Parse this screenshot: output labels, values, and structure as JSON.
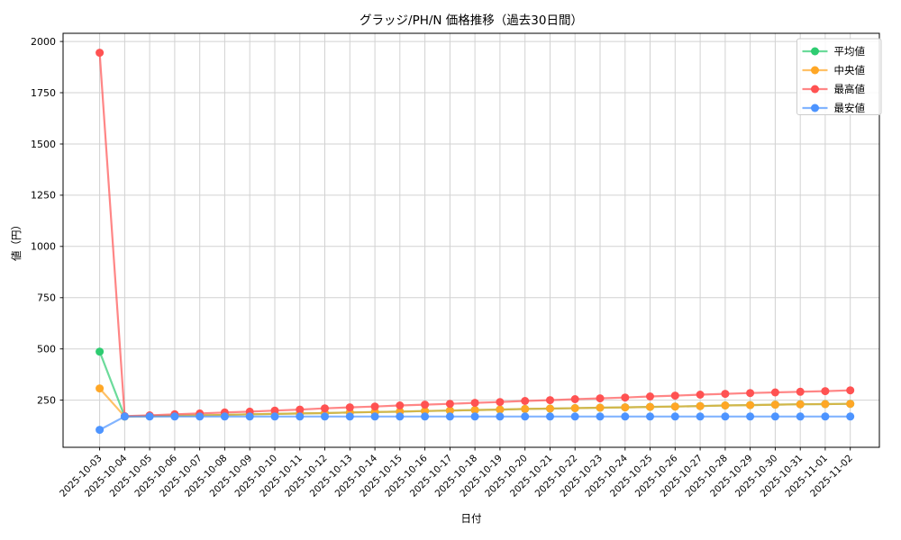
{
  "title": "グラッジ/PH/N 価格推移（過去30日間）",
  "chart_data": {
    "type": "line",
    "title": "グラッジ/PH/N 価格推移（過去30日間）",
    "xlabel": "日付",
    "ylabel": "値（円）",
    "grid": true,
    "legend_position": "upper right",
    "ylim": [
      20,
      2040
    ],
    "yticks": [
      250,
      500,
      750,
      1000,
      1250,
      1500,
      1750,
      2000
    ],
    "x": [
      "2025-10-03",
      "2025-10-04",
      "2025-10-05",
      "2025-10-06",
      "2025-10-07",
      "2025-10-08",
      "2025-10-09",
      "2025-10-10",
      "2025-10-11",
      "2025-10-12",
      "2025-10-13",
      "2025-10-14",
      "2025-10-15",
      "2025-10-16",
      "2025-10-17",
      "2025-10-18",
      "2025-10-19",
      "2025-10-20",
      "2025-10-21",
      "2025-10-22",
      "2025-10-23",
      "2025-10-24",
      "2025-10-25",
      "2025-10-26",
      "2025-10-27",
      "2025-10-28",
      "2025-10-29",
      "2025-10-30",
      "2025-10-31",
      "2025-11-01",
      "2025-11-02"
    ],
    "series": [
      {
        "id": "mean",
        "name": "平均値",
        "color": "#2ecc71",
        "values": [
          487,
          170,
          172,
          174,
          176,
          178,
          181,
          183,
          185,
          187,
          190,
          192,
          194,
          197,
          199,
          202,
          204,
          207,
          209,
          211,
          213,
          215,
          217,
          219,
          221,
          224,
          226,
          228,
          230,
          231,
          232
        ]
      },
      {
        "id": "median",
        "name": "中央値",
        "color": "#ffa726",
        "values": [
          307,
          170,
          172,
          174,
          176,
          178,
          181,
          183,
          185,
          187,
          190,
          192,
          194,
          197,
          199,
          202,
          204,
          207,
          209,
          211,
          213,
          215,
          217,
          219,
          221,
          224,
          226,
          228,
          230,
          231,
          232
        ]
      },
      {
        "id": "max",
        "name": "最高値",
        "color": "#ff5252",
        "values": [
          1945,
          172,
          176,
          181,
          185,
          190,
          194,
          199,
          204,
          210,
          215,
          219,
          224,
          228,
          232,
          237,
          241,
          246,
          250,
          255,
          259,
          263,
          268,
          272,
          277,
          281,
          285,
          288,
          291,
          294,
          298
        ]
      },
      {
        "id": "min",
        "name": "最安値",
        "color": "#4d94ff",
        "values": [
          105,
          170,
          170,
          170,
          170,
          170,
          170,
          170,
          170,
          170,
          170,
          170,
          170,
          170,
          170,
          170,
          170,
          170,
          170,
          170,
          170,
          170,
          170,
          170,
          170,
          170,
          170,
          170,
          170,
          170,
          170
        ]
      }
    ]
  }
}
